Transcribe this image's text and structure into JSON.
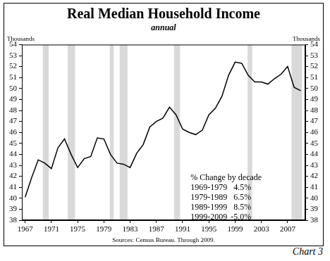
{
  "chart_data": {
    "type": "line",
    "title": "Real Median Household Income",
    "subtitle": "annual",
    "y_label": "Thousands",
    "y2_label": "Thousands",
    "x_label": "Sources: Census Bureau. Through 2009.",
    "footer": "Chart 3",
    "x": [
      1967,
      1968,
      1969,
      1970,
      1971,
      1972,
      1973,
      1974,
      1975,
      1976,
      1977,
      1978,
      1979,
      1980,
      1981,
      1982,
      1983,
      1984,
      1985,
      1986,
      1987,
      1988,
      1989,
      1990,
      1991,
      1992,
      1993,
      1994,
      1995,
      1996,
      1997,
      1998,
      1999,
      2000,
      2001,
      2002,
      2003,
      2004,
      2005,
      2006,
      2007,
      2008,
      2009
    ],
    "values": [
      40.1,
      41.9,
      43.5,
      43.2,
      42.7,
      44.6,
      45.4,
      44.0,
      42.8,
      43.6,
      43.8,
      45.5,
      45.4,
      44.0,
      43.2,
      43.1,
      42.8,
      44.1,
      44.9,
      46.5,
      47.0,
      47.3,
      48.3,
      47.6,
      46.3,
      46.0,
      45.8,
      46.2,
      47.6,
      48.2,
      49.3,
      51.2,
      52.4,
      52.3,
      51.2,
      50.6,
      50.6,
      50.4,
      50.9,
      51.3,
      52.0,
      50.1,
      49.8
    ],
    "color": "#000000",
    "shaded_ranges": [
      [
        1969.7,
        1970.6
      ],
      [
        1973.5,
        1974.6
      ],
      [
        1979.9,
        1980.5
      ],
      [
        1981.4,
        1982.6
      ],
      [
        1989.7,
        1990.6
      ],
      [
        2000.9,
        2001.6
      ],
      [
        2007.6,
        2009.2
      ]
    ],
    "shade_color": "#d9d9d9",
    "annotation": {
      "title": "% Change by decade",
      "rows": [
        [
          "1969-1979",
          "4.5%"
        ],
        [
          "1979-1989",
          "6.5%"
        ],
        [
          "1989-1999",
          "8.5%"
        ],
        [
          "1999-2009",
          "-5.0%"
        ]
      ]
    },
    "xlim": [
      1966.5,
      2009.7
    ],
    "xticks": [
      1967,
      1971,
      1975,
      1979,
      1983,
      1987,
      1991,
      1995,
      1999,
      2003,
      2007
    ],
    "ylim": [
      38,
      54
    ],
    "yticks": [
      38,
      39,
      40,
      41,
      42,
      43,
      44,
      45,
      46,
      47,
      48,
      49,
      50,
      51,
      52,
      53,
      54
    ],
    "y2lim": [
      38,
      54
    ],
    "y2ticks": [
      38,
      39,
      40,
      41,
      42,
      43,
      44,
      45,
      46,
      47,
      48,
      49,
      50,
      51,
      52,
      53,
      54
    ],
    "grid": false,
    "legend": false
  }
}
